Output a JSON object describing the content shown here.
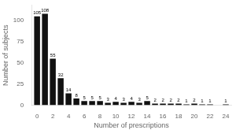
{
  "chart_data": {
    "type": "bar",
    "x": [
      0,
      1,
      2,
      3,
      4,
      5,
      6,
      7,
      8,
      9,
      10,
      11,
      12,
      13,
      14,
      15,
      16,
      17,
      18,
      19,
      20,
      21,
      22,
      23,
      24
    ],
    "values": [
      105,
      108,
      55,
      32,
      14,
      8,
      5,
      5,
      5,
      3,
      4,
      3,
      4,
      3,
      5,
      2,
      2,
      2,
      2,
      1,
      2,
      1,
      1,
      0,
      1
    ],
    "value_labels": [
      "105",
      "108",
      "55",
      "32",
      "14",
      "8",
      "5",
      "5",
      "5",
      "3",
      "4",
      "3",
      "4",
      "3",
      "5",
      "2",
      "2",
      "2",
      "2",
      "1",
      "2",
      "1",
      "1",
      null,
      "1"
    ],
    "color": "#111111",
    "xlabel": "Number of prescriptions",
    "ylabel": "Number of subjects",
    "xlim": [
      -0.7,
      24.7
    ],
    "xticks": [
      0,
      2,
      4,
      6,
      8,
      10,
      12,
      14,
      16,
      18,
      20,
      22,
      24
    ],
    "ylim": [
      0,
      118
    ],
    "yticks": [
      0,
      25,
      50,
      75,
      100
    ],
    "grid": false,
    "data_labels": true
  }
}
